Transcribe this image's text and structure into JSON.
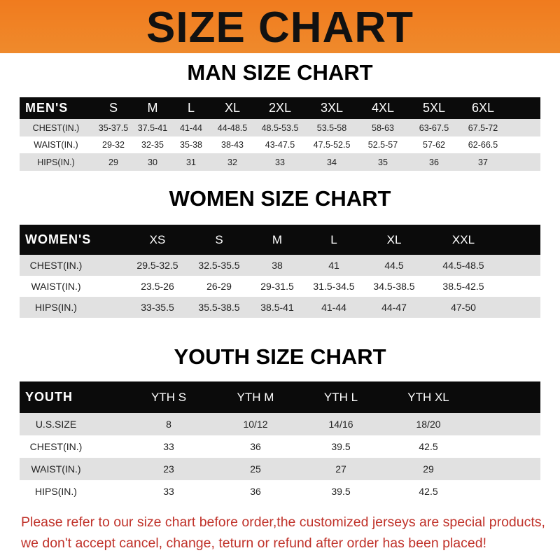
{
  "banner": {
    "title": "SIZE CHART",
    "color": "#f07b1e"
  },
  "men": {
    "title": "MAN SIZE CHART",
    "header": [
      "MEN'S",
      "S",
      "M",
      "L",
      "XL",
      "2XL",
      "3XL",
      "4XL",
      "5XL",
      "6XL"
    ],
    "rows": [
      [
        "CHEST(IN.)",
        "35-37.5",
        "37.5-41",
        "41-44",
        "44-48.5",
        "48.5-53.5",
        "53.5-58",
        "58-63",
        "63-67.5",
        "67.5-72"
      ],
      [
        "WAIST(IN.)",
        "29-32",
        "32-35",
        "35-38",
        "38-43",
        "43-47.5",
        "47.5-52.5",
        "52.5-57",
        "57-62",
        "62-66.5"
      ],
      [
        "HIPS(IN.)",
        "29",
        "30",
        "31",
        "32",
        "33",
        "34",
        "35",
        "36",
        "37"
      ]
    ]
  },
  "women": {
    "title": "WOMEN SIZE CHART",
    "header": [
      "WOMEN'S",
      "XS",
      "S",
      "M",
      "L",
      "XL",
      "XXL"
    ],
    "rows": [
      [
        "CHEST(IN.)",
        "29.5-32.5",
        "32.5-35.5",
        "38",
        "41",
        "44.5",
        "44.5-48.5"
      ],
      [
        "WAIST(IN.)",
        "23.5-26",
        "26-29",
        "29-31.5",
        "31.5-34.5",
        "34.5-38.5",
        "38.5-42.5"
      ],
      [
        "HIPS(IN.)",
        "33-35.5",
        "35.5-38.5",
        "38.5-41",
        "41-44",
        "44-47",
        "47-50"
      ]
    ]
  },
  "youth": {
    "title": "YOUTH SIZE CHART",
    "header": [
      "YOUTH",
      "YTH S",
      "YTH M",
      "YTH L",
      "YTH XL"
    ],
    "rows": [
      [
        "U.S.SIZE",
        "8",
        "10/12",
        "14/16",
        "18/20"
      ],
      [
        "CHEST(IN.)",
        "33",
        "36",
        "39.5",
        "42.5"
      ],
      [
        "WAIST(IN.)",
        "23",
        "25",
        "27",
        "29"
      ],
      [
        "HIPS(IN.)",
        "33",
        "36",
        "39.5",
        "42.5"
      ]
    ]
  },
  "note": {
    "line1": "Please refer to our size chart before order,the customized jerseys are special products,",
    "line2": "we don't accept cancel, change, teturn or refund after order has been placed!",
    "color": "#c0322a"
  }
}
